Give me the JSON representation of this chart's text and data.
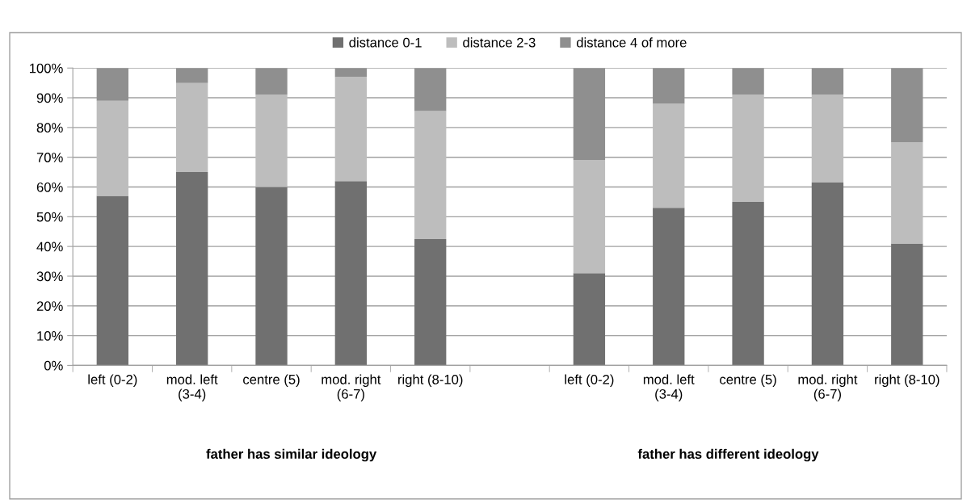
{
  "chart_data": {
    "type": "bar",
    "stacked": true,
    "categories": [
      "left (0-2)",
      "mod. left (3-4)",
      "centre (5)",
      "mod. right (6-7)",
      "right (8-10)",
      null,
      "left (0-2)",
      "mod. left (3-4)",
      "centre (5)",
      "mod. right (6-7)",
      "right (8-10)"
    ],
    "series": [
      {
        "name": "distance 0-1",
        "color": "#707070",
        "values": [
          57,
          65,
          60,
          62,
          42.5,
          null,
          31,
          53,
          55,
          61.5,
          41
        ]
      },
      {
        "name": "distance 2-3",
        "color": "#bdbdbd",
        "values": [
          32,
          30,
          31,
          35,
          43,
          null,
          38,
          35,
          36,
          29.5,
          34
        ]
      },
      {
        "name": "distance 4 of more",
        "color": "#8f8f8f",
        "values": [
          11,
          5,
          9,
          3,
          14.5,
          null,
          31,
          12,
          9,
          9,
          25
        ]
      }
    ],
    "ylim": [
      0,
      100
    ],
    "yticks": [
      {
        "value": 0,
        "label": "0%"
      },
      {
        "value": 10,
        "label": "10%"
      },
      {
        "value": 20,
        "label": "20%"
      },
      {
        "value": 30,
        "label": "30%"
      },
      {
        "value": 40,
        "label": "40%"
      },
      {
        "value": 50,
        "label": "50%"
      },
      {
        "value": 60,
        "label": "60%"
      },
      {
        "value": 70,
        "label": "70%"
      },
      {
        "value": 80,
        "label": "80%"
      },
      {
        "value": 90,
        "label": "90%"
      },
      {
        "value": 100,
        "label": "100%"
      }
    ],
    "grid": "y",
    "legend": "top",
    "annotations": [
      "father has similar ideology",
      "father has different ideology"
    ]
  }
}
